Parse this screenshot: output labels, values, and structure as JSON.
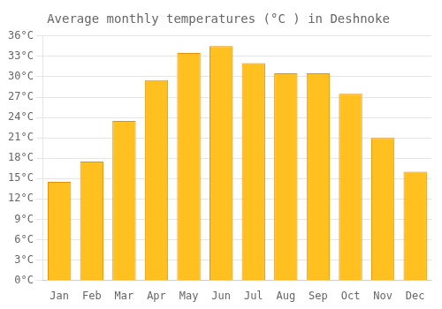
{
  "chart_data": {
    "type": "bar",
    "title": "Average monthly temperatures (°C ) in Deshnoke",
    "categories": [
      "Jan",
      "Feb",
      "Mar",
      "Apr",
      "May",
      "Jun",
      "Jul",
      "Aug",
      "Sep",
      "Oct",
      "Nov",
      "Dec"
    ],
    "values": [
      14.5,
      17.5,
      23.5,
      29.5,
      33.5,
      34.5,
      32.0,
      30.5,
      30.5,
      27.5,
      21.0,
      16.0
    ],
    "color": "#FFC020",
    "ylim": [
      0,
      36
    ],
    "yticks": [
      {
        "value": 0,
        "label": "0°C"
      },
      {
        "value": 3,
        "label": "3°C"
      },
      {
        "value": 6,
        "label": "6°C"
      },
      {
        "value": 9,
        "label": "9°C"
      },
      {
        "value": 12,
        "label": "12°C"
      },
      {
        "value": 15,
        "label": "15°C"
      },
      {
        "value": 18,
        "label": "18°C"
      },
      {
        "value": 21,
        "label": "21°C"
      },
      {
        "value": 24,
        "label": "24°C"
      },
      {
        "value": 27,
        "label": "27°C"
      },
      {
        "value": 30,
        "label": "30°C"
      },
      {
        "value": 33,
        "label": "33°C"
      },
      {
        "value": 36,
        "label": "36°C"
      }
    ],
    "grid": true
  }
}
